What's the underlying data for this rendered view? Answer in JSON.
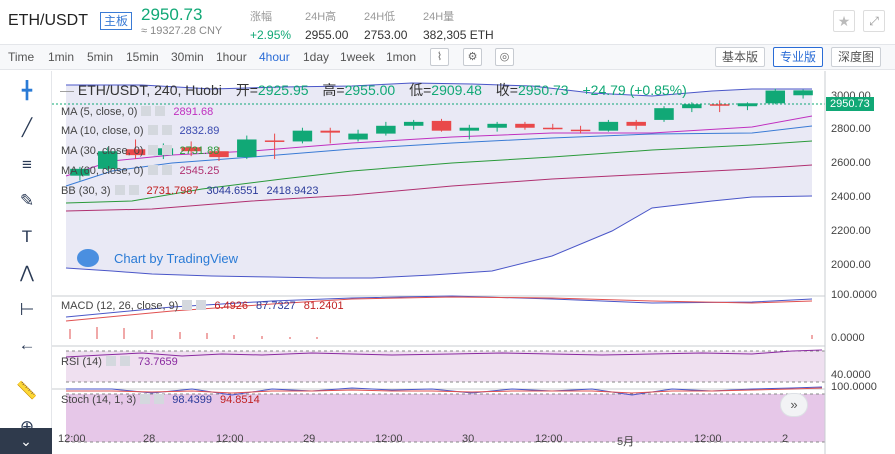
{
  "header": {
    "pair": "ETH/USDT",
    "tag": "主板",
    "price": "2950.73",
    "cny": "≈ 19327.28 CNY",
    "change_label": "涨幅",
    "change_value": "+2.95%",
    "high_label": "24H高",
    "high_value": "2955.00",
    "low_label": "24H低",
    "low_value": "2753.00",
    "vol_label": "24H量",
    "vol_value": "382,305 ETH",
    "star_icon": "★",
    "expand_icon": "⤢"
  },
  "toolbar": {
    "intervals": [
      "Time",
      "1min",
      "5min",
      "15min",
      "30min",
      "1hour",
      "4hour",
      "1day",
      "1week",
      "1mon"
    ],
    "active_interval": "4hour",
    "versions": [
      "基本版",
      "专业版",
      "深度图"
    ],
    "active_version": "专业版"
  },
  "legend": {
    "title": "ETH/USDT, 240, Huobi",
    "open_label": "开=",
    "open": "2925.95",
    "high_label": "高=",
    "high": "2955.00",
    "low_label": "低=",
    "low": "2909.48",
    "close_label": "收=",
    "close": "2950.73",
    "change": "+24.79 (+0.85%)"
  },
  "indicators": {
    "ma5": {
      "label": "MA (5, close, 0)",
      "value": "2891.68",
      "color": "#c030c0"
    },
    "ma10": {
      "label": "MA (10, close, 0)",
      "value": "2832.89",
      "color": "#3a7bd5"
    },
    "ma30": {
      "label": "MA (30, close, 0)",
      "value": "2731.88",
      "color": "#2a9a3a"
    },
    "ma60": {
      "label": "MA (60, close, 0)",
      "value": "2545.25",
      "color": "#b03070"
    },
    "bb": {
      "label": "BB (30, 3)",
      "v1": "2731.7987",
      "v2": "3044.6551",
      "v3": "2418.9423"
    },
    "macd": {
      "label": "MACD (12, 26, close, 9)",
      "v1": "6.4926",
      "v2": "87.7327",
      "v3": "81.2401"
    },
    "rsi": {
      "label": "RSI (14)",
      "value": "73.7659"
    },
    "stoch": {
      "label": "Stoch (14, 1, 3)",
      "v1": "98.4399",
      "v2": "94.8514"
    }
  },
  "watermark": "Chart by TradingView",
  "price_axis": [
    "3000.00",
    "2800.00",
    "2600.00",
    "2400.00",
    "2200.00",
    "2000.00"
  ],
  "current_price_tag": "2950.73",
  "macd_axis": [
    "100.0000",
    "0.0000"
  ],
  "rsi_axis": [
    "40.0000"
  ],
  "stoch_axis": [
    "100.0000"
  ],
  "time_axis": [
    "12:00",
    "28",
    "12:00",
    "29",
    "12:00",
    "30",
    "12:00",
    "5月",
    "12:00",
    "2"
  ],
  "colors": {
    "up": "#11a876",
    "down": "#e9484a",
    "accent": "#2a6cd6"
  },
  "tools": [
    "crosshair-icon",
    "trendline-icon",
    "fib-icon",
    "brush-icon",
    "text-icon",
    "pattern-icon",
    "measure-icon",
    "back-arrow-icon",
    "ruler-icon",
    "zoom-icon"
  ],
  "chart_data": {
    "type": "candlestick",
    "title": "ETH/USDT, 240, Huobi",
    "ylim": [
      1900,
      3050
    ],
    "candles": [
      {
        "o": 2515,
        "h": 2560,
        "l": 2490,
        "c": 2550
      },
      {
        "o": 2550,
        "h": 2660,
        "l": 2540,
        "c": 2640
      },
      {
        "o": 2650,
        "h": 2700,
        "l": 2600,
        "c": 2620
      },
      {
        "o": 2620,
        "h": 2680,
        "l": 2600,
        "c": 2655
      },
      {
        "o": 2660,
        "h": 2690,
        "l": 2615,
        "c": 2640
      },
      {
        "o": 2640,
        "h": 2660,
        "l": 2590,
        "c": 2610
      },
      {
        "o": 2610,
        "h": 2720,
        "l": 2600,
        "c": 2700
      },
      {
        "o": 2695,
        "h": 2730,
        "l": 2600,
        "c": 2690
      },
      {
        "o": 2690,
        "h": 2760,
        "l": 2680,
        "c": 2745
      },
      {
        "o": 2745,
        "h": 2760,
        "l": 2680,
        "c": 2735
      },
      {
        "o": 2700,
        "h": 2750,
        "l": 2690,
        "c": 2730
      },
      {
        "o": 2730,
        "h": 2790,
        "l": 2720,
        "c": 2770
      },
      {
        "o": 2770,
        "h": 2800,
        "l": 2750,
        "c": 2790
      },
      {
        "o": 2795,
        "h": 2805,
        "l": 2740,
        "c": 2745
      },
      {
        "o": 2745,
        "h": 2775,
        "l": 2700,
        "c": 2760
      },
      {
        "o": 2760,
        "h": 2790,
        "l": 2740,
        "c": 2780
      },
      {
        "o": 2780,
        "h": 2790,
        "l": 2750,
        "c": 2760
      },
      {
        "o": 2760,
        "h": 2780,
        "l": 2750,
        "c": 2755
      },
      {
        "o": 2750,
        "h": 2770,
        "l": 2730,
        "c": 2745
      },
      {
        "o": 2745,
        "h": 2800,
        "l": 2740,
        "c": 2790
      },
      {
        "o": 2790,
        "h": 2800,
        "l": 2750,
        "c": 2770
      },
      {
        "o": 2800,
        "h": 2870,
        "l": 2790,
        "c": 2860
      },
      {
        "o": 2860,
        "h": 2890,
        "l": 2840,
        "c": 2880
      },
      {
        "o": 2880,
        "h": 2900,
        "l": 2840,
        "c": 2875
      },
      {
        "o": 2870,
        "h": 2890,
        "l": 2850,
        "c": 2885
      },
      {
        "o": 2885,
        "h": 2960,
        "l": 2880,
        "c": 2950
      },
      {
        "o": 2926,
        "h": 2955,
        "l": 2909,
        "c": 2951
      }
    ]
  }
}
